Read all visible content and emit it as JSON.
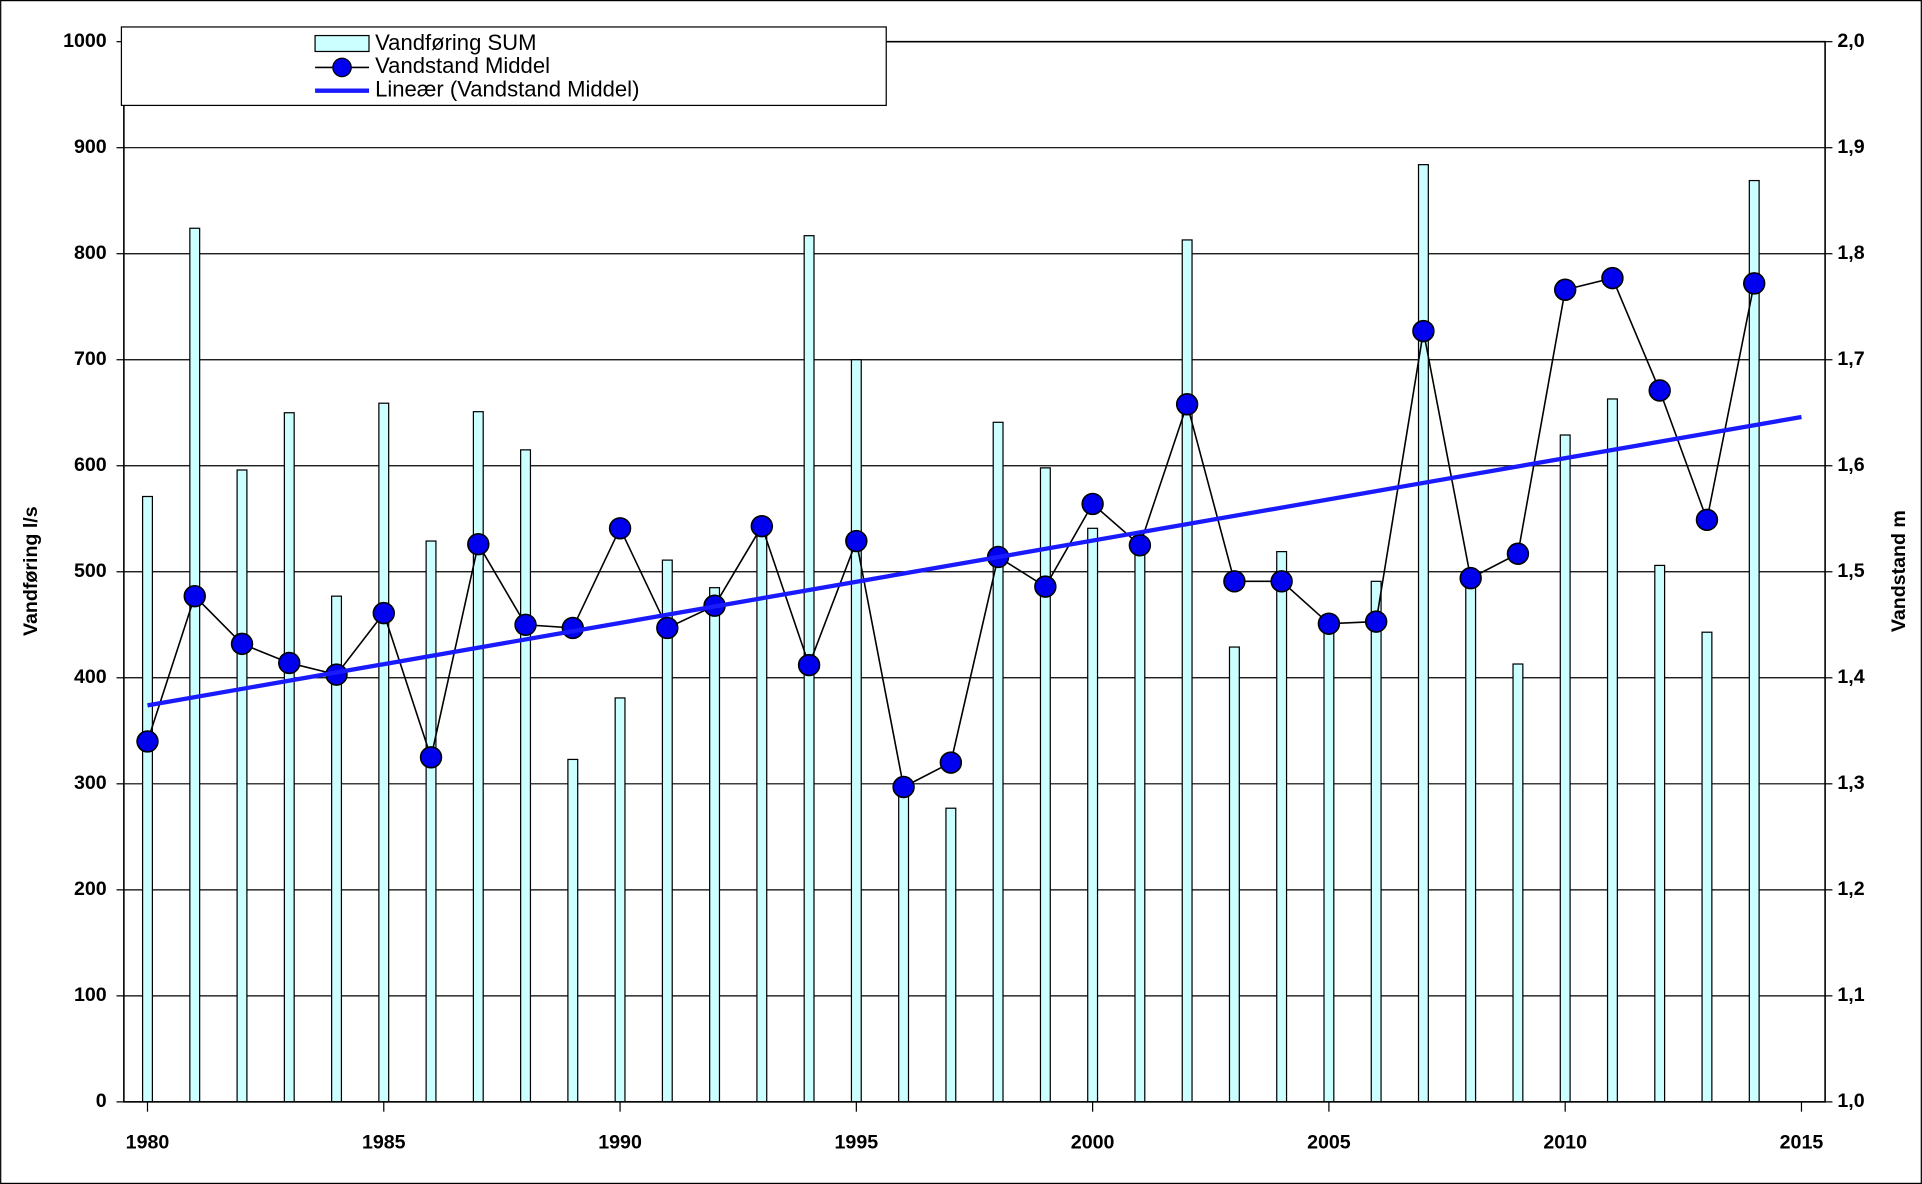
{
  "chart_data": {
    "type": "bar-line",
    "x": [
      1980,
      1981,
      1982,
      1983,
      1984,
      1985,
      1986,
      1987,
      1988,
      1989,
      1990,
      1991,
      1992,
      1993,
      1994,
      1995,
      1996,
      1997,
      1998,
      1999,
      2000,
      2001,
      2002,
      2003,
      2004,
      2005,
      2006,
      2007,
      2008,
      2009,
      2010,
      2011,
      2012,
      2013,
      2014
    ],
    "series": [
      {
        "name": "Vandføring SUM",
        "type": "bar",
        "axis": "y",
        "color": "#ccffff",
        "values": [
          571,
          824,
          596,
          650,
          477,
          659,
          529,
          651,
          615,
          323,
          381,
          511,
          485,
          540,
          817,
          700,
          295,
          277,
          641,
          598,
          541,
          520,
          813,
          429,
          519,
          445,
          491,
          884,
          490,
          413,
          629,
          663,
          506,
          443,
          869
        ]
      },
      {
        "name": "Vandstand Middel",
        "type": "line",
        "axis": "y2",
        "color": "#0000ee",
        "values": [
          1.34,
          1.477,
          1.432,
          1.414,
          1.403,
          1.461,
          1.325,
          1.526,
          1.45,
          1.447,
          1.541,
          1.447,
          1.468,
          1.543,
          1.412,
          1.529,
          1.297,
          1.32,
          1.514,
          1.486,
          1.564,
          1.525,
          1.658,
          1.491,
          1.491,
          1.451,
          1.453,
          1.727,
          1.494,
          1.517,
          1.766,
          1.777,
          1.671,
          1.549,
          1.772
        ]
      },
      {
        "name": "Lineær (Vandstand Middel)",
        "type": "trend",
        "axis": "y2",
        "color": "#1a1aff",
        "x": [
          1980,
          2015
        ],
        "values": [
          1.374,
          1.646
        ]
      }
    ],
    "y_label": "Vandføring l/s",
    "y2_label": "Vandstand m",
    "xlim": [
      1979.5,
      2015.5
    ],
    "xticks": [
      1980,
      1985,
      1990,
      1995,
      2000,
      2005,
      2010,
      2015
    ],
    "ylim": [
      0,
      1000
    ],
    "yticks": [
      0,
      100,
      200,
      300,
      400,
      500,
      600,
      700,
      800,
      900,
      1000
    ],
    "y2lim": [
      1.0,
      2.0
    ],
    "y2ticks": [
      {
        "value": 1.0,
        "label": "1,0"
      },
      {
        "value": 1.1,
        "label": "1,1"
      },
      {
        "value": 1.2,
        "label": "1,2"
      },
      {
        "value": 1.3,
        "label": "1,3"
      },
      {
        "value": 1.4,
        "label": "1,4"
      },
      {
        "value": 1.5,
        "label": "1,5"
      },
      {
        "value": 1.6,
        "label": "1,6"
      },
      {
        "value": 1.7,
        "label": "1,7"
      },
      {
        "value": 1.8,
        "label": "1,8"
      },
      {
        "value": 1.9,
        "label": "1,9"
      },
      {
        "value": 2.0,
        "label": "2,0"
      }
    ],
    "grid": true
  }
}
